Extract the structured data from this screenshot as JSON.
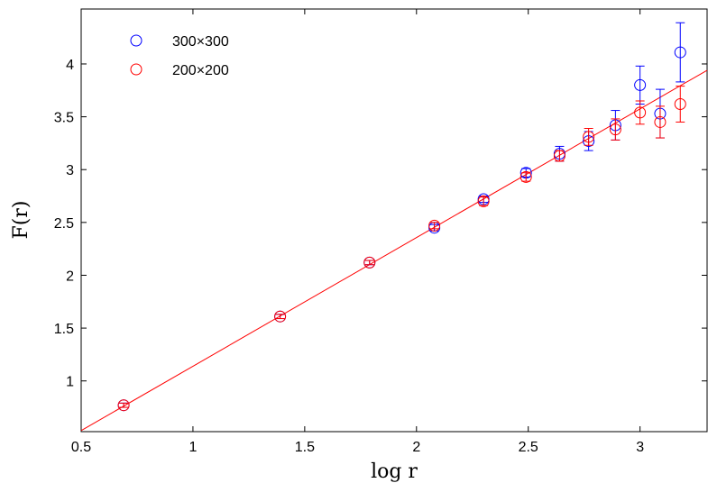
{
  "chart_data": {
    "type": "scatter",
    "title": "",
    "xlabel": "log r",
    "ylabel": "F(r)",
    "xlim": [
      0.5,
      3.3
    ],
    "ylim": [
      0.52,
      4.52
    ],
    "grid": false,
    "legend_position": "top-left",
    "x_ticks": [
      0.5,
      1,
      1.5,
      2,
      2.5,
      3
    ],
    "x_tick_labels": [
      "0.5",
      "1",
      "1.5",
      "2",
      "2.5",
      "3"
    ],
    "y_ticks": [
      1,
      1.5,
      2,
      2.5,
      3,
      3.5,
      4
    ],
    "y_tick_labels": [
      "1",
      "1.5",
      "2",
      "2.5",
      "3",
      "3.5",
      "4"
    ],
    "series": [
      {
        "name": "300×300",
        "color": "#0000ff",
        "marker": "circle",
        "x": [
          0.69,
          1.39,
          1.79,
          2.08,
          2.3,
          2.49,
          2.64,
          2.77,
          2.89,
          3.0,
          3.09,
          3.18
        ],
        "y": [
          0.77,
          1.61,
          2.12,
          2.45,
          2.72,
          2.97,
          3.15,
          3.27,
          3.42,
          3.8,
          3.53,
          4.11
        ],
        "error": [
          0.02,
          0.02,
          0.02,
          0.03,
          0.03,
          0.04,
          0.07,
          0.09,
          0.14,
          0.18,
          0.23,
          0.28
        ]
      },
      {
        "name": "200×200",
        "color": "#ff0000",
        "marker": "circle",
        "x": [
          0.69,
          1.39,
          1.79,
          2.08,
          2.3,
          2.49,
          2.64,
          2.77,
          2.89,
          3.0,
          3.09,
          3.18
        ],
        "y": [
          0.77,
          1.61,
          2.12,
          2.47,
          2.7,
          2.93,
          3.13,
          3.31,
          3.38,
          3.54,
          3.45,
          3.62
        ],
        "error": [
          0.02,
          0.02,
          0.02,
          0.03,
          0.04,
          0.04,
          0.05,
          0.08,
          0.1,
          0.11,
          0.15,
          0.17
        ]
      }
    ],
    "fit_line": {
      "color": "#ff0000",
      "x": [
        0.5,
        3.3
      ],
      "y": [
        0.53,
        3.94
      ]
    }
  }
}
